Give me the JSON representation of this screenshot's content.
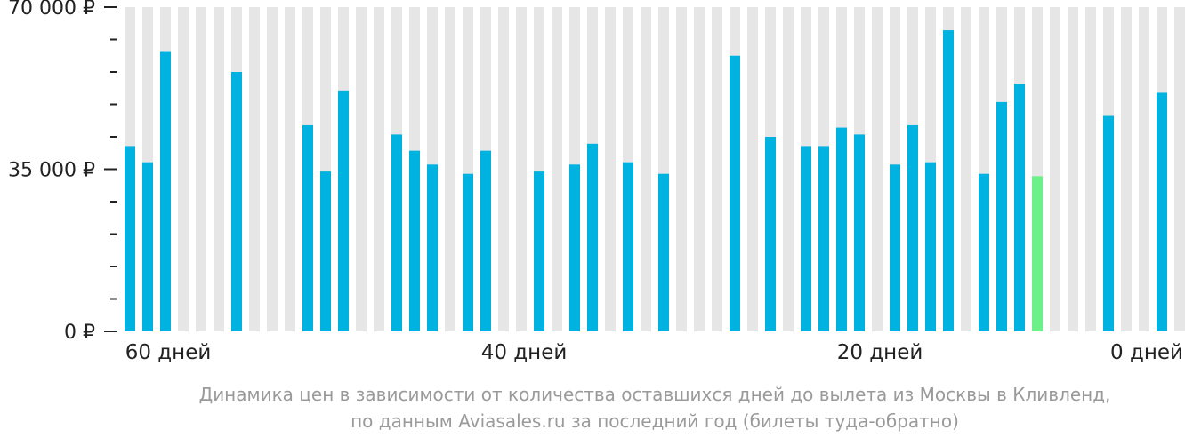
{
  "chart_data": {
    "type": "bar",
    "ylim": [
      0,
      70000
    ],
    "y_ticks": [
      {
        "value": 70000,
        "label": "70 000 ₽"
      },
      {
        "value": 35000,
        "label": "35 000 ₽"
      },
      {
        "value": 0,
        "label": "0 ₽"
      }
    ],
    "x_ticks": [
      {
        "days": 60,
        "label": "60 дней"
      },
      {
        "days": 40,
        "label": "40 дней"
      },
      {
        "days": 20,
        "label": "20 дней"
      },
      {
        "days": 0,
        "label": "0 дней"
      }
    ],
    "x_reversed": true,
    "days_left": [
      61,
      60,
      59,
      58,
      57,
      56,
      55,
      54,
      53,
      52,
      51,
      50,
      49,
      48,
      47,
      46,
      45,
      44,
      43,
      42,
      41,
      40,
      39,
      38,
      37,
      36,
      35,
      34,
      33,
      32,
      31,
      30,
      29,
      28,
      27,
      26,
      25,
      24,
      23,
      22,
      21,
      20,
      19,
      18,
      17,
      16,
      15,
      14,
      13,
      12,
      11,
      10,
      9,
      8,
      7,
      6,
      5,
      4,
      3,
      2,
      1,
      0
    ],
    "values": [
      40000,
      36500,
      60500,
      null,
      null,
      null,
      56000,
      null,
      null,
      null,
      44500,
      34500,
      52000,
      null,
      null,
      42500,
      39000,
      36000,
      null,
      34000,
      39000,
      null,
      null,
      34500,
      null,
      36000,
      40500,
      null,
      36500,
      null,
      34000,
      null,
      null,
      null,
      null,
      null,
      null,
      null,
      null,
      null,
      null,
      null,
      null,
      null,
      null,
      null,
      null,
      null,
      null,
      null,
      null,
      null,
      null,
      null,
      null,
      null,
      null,
      null,
      null,
      null,
      null,
      null
    ],
    "highlight_index": null
  },
  "colors": {
    "bar": "#00b2e0",
    "highlight": "#6cf08a",
    "empty_bar": "#e6e6e6",
    "axis": "#222222",
    "caption": "#9a9a9a"
  },
  "caption": {
    "line1": "Динамика цен в зависимости от количества оставшихся дней до вылета из Москвы в Кливленд,",
    "line2": "по данным Aviasales.ru за последний год (билеты туда-обратно)"
  }
}
